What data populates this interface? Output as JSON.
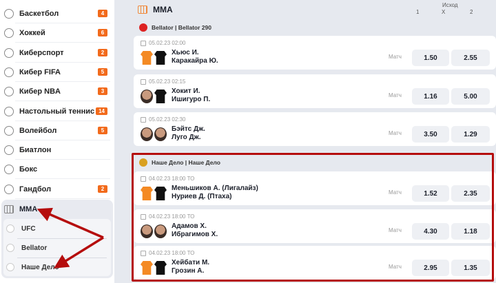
{
  "sidebar": {
    "items": [
      {
        "label": "Баскетбол",
        "badge": "4",
        "icon": "basketball-icon"
      },
      {
        "label": "Хоккей",
        "badge": "6",
        "icon": "hockey-icon"
      },
      {
        "label": "Киберспорт",
        "badge": "2",
        "icon": "gamepad-icon"
      },
      {
        "label": "Кибер FIFA",
        "badge": "5",
        "icon": "cyber-fifa-icon"
      },
      {
        "label": "Кибер NBA",
        "badge": "3",
        "icon": "cyber-nba-icon"
      },
      {
        "label": "Настольный теннис",
        "badge": "14",
        "icon": "table-tennis-icon"
      },
      {
        "label": "Волейбол",
        "badge": "5",
        "icon": "volleyball-icon"
      },
      {
        "label": "Биатлон",
        "badge": null,
        "icon": "biathlon-icon"
      },
      {
        "label": "Бокс",
        "badge": null,
        "icon": "boxing-icon"
      },
      {
        "label": "Гандбол",
        "badge": "2",
        "icon": "handball-icon"
      }
    ],
    "mma": {
      "label": "MMA",
      "subs": [
        "UFC",
        "Bellator",
        "Наше Дело"
      ]
    }
  },
  "main": {
    "title": "MMA",
    "outcome": "Исход",
    "cols": [
      "1",
      "X",
      "2"
    ],
    "leagues": [
      {
        "name": "Bellator | Bellator 290",
        "color": "#d22",
        "events": [
          {
            "time": "05.02.23 02:00",
            "p1": "Хьюс И.",
            "p2": "Каракайра Ю.",
            "type": "Матч",
            "o1": "1.50",
            "o2": "2.55",
            "av": [
              "shirt-o",
              "shirt-b"
            ]
          },
          {
            "time": "05.02.23 02:15",
            "p1": "Хокит И.",
            "p2": "Ишигуро П.",
            "type": "Матч",
            "o1": "1.16",
            "o2": "5.00",
            "av": [
              "face",
              "shirt-b"
            ]
          },
          {
            "time": "05.02.23 02:30",
            "p1": "Бэйтс Дж.",
            "p2": "Луго Дж.",
            "type": "Матч",
            "o1": "3.50",
            "o2": "1.29",
            "av": [
              "face",
              "face"
            ]
          }
        ]
      },
      {
        "name": "Наше Дело | Наше Дело",
        "color": "#d9a020",
        "events": [
          {
            "time": "04.02.23 18:00  ТО",
            "p1": "Меньшиков А. (Лигалайз)",
            "p2": "Нуриев Д. (Птаха)",
            "type": "Матч",
            "o1": "1.52",
            "o2": "2.35",
            "av": [
              "shirt-o",
              "shirt-b"
            ]
          },
          {
            "time": "04.02.23 18:00  ТО",
            "p1": "Адамов Х.",
            "p2": "Ибрагимов Х.",
            "type": "Матч",
            "o1": "4.30",
            "o2": "1.18",
            "av": [
              "face",
              "face"
            ]
          },
          {
            "time": "04.02.23 18:00  ТО",
            "p1": "Хейбати М.",
            "p2": "Грозин А.",
            "type": "Матч",
            "o1": "2.95",
            "o2": "1.35",
            "av": [
              "shirt-o",
              "shirt-b"
            ]
          }
        ]
      }
    ]
  },
  "colors": {
    "badge": "#f26a1b",
    "highlight": "#b50d0d"
  }
}
